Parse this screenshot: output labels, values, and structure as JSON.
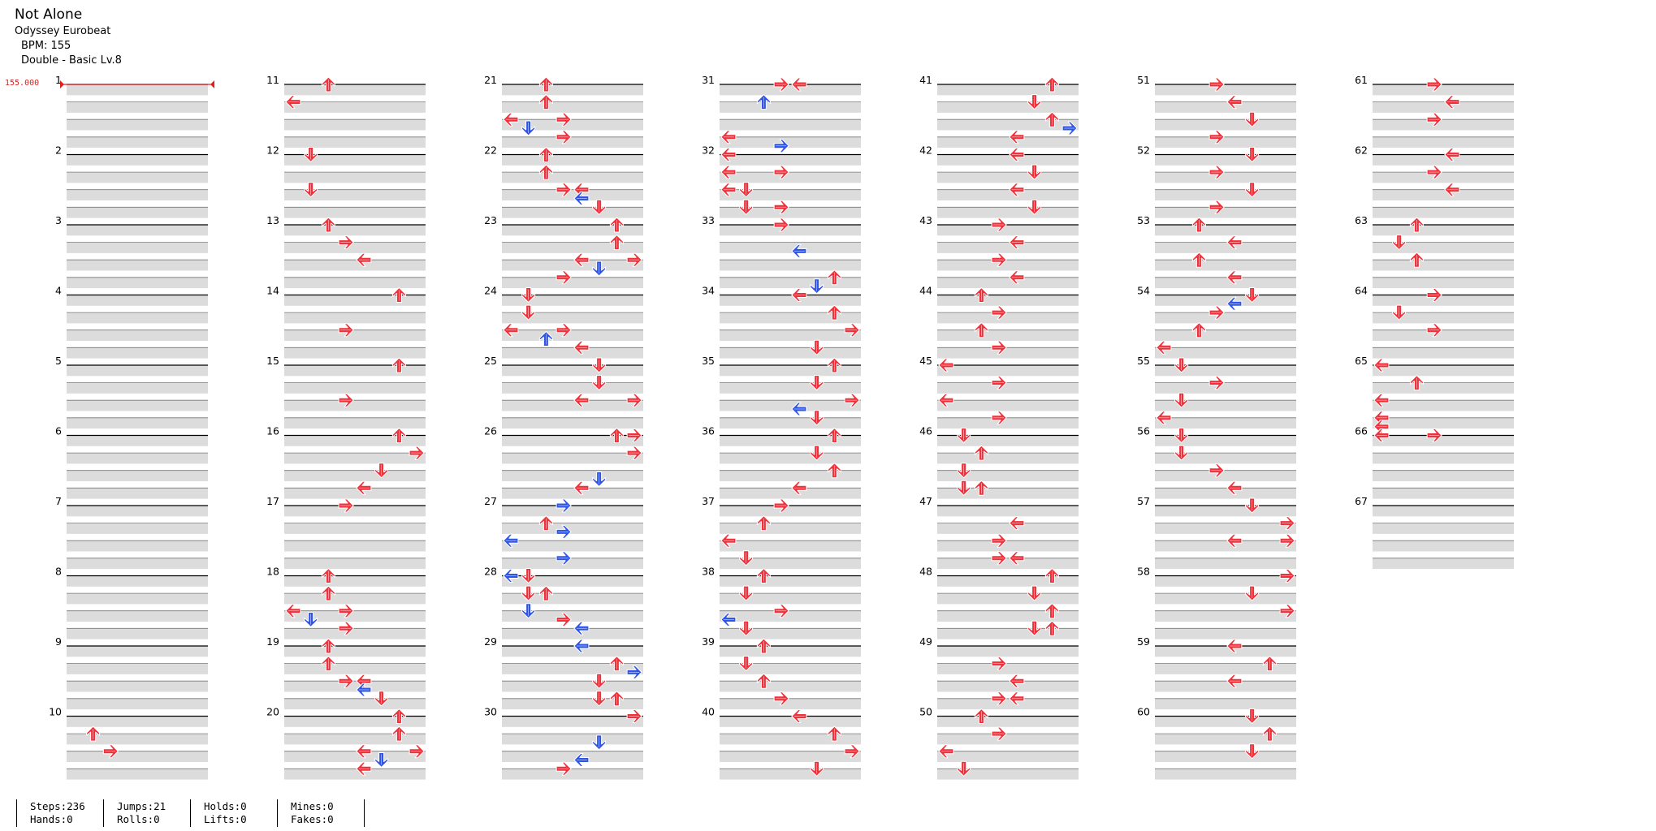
{
  "header": {
    "title": "Not Alone",
    "artist": "Odyssey Eurobeat",
    "bpm": "BPM: 155",
    "difficulty": "Double - Basic Lv.8"
  },
  "bpm_marker": "155.000",
  "colors": {
    "note_red": "#f0303a",
    "note_blue": "#2f55e8",
    "lane_gray": "#dcdcdc",
    "bpm_red": "#e02020"
  },
  "stats": [
    {
      "a": "Steps:236",
      "b": "Hands:0"
    },
    {
      "a": "Jumps:21",
      "b": "Rolls:0"
    },
    {
      "a": "Holds:0",
      "b": "Lifts:0"
    },
    {
      "a": "Mines:0",
      "b": "Fakes:0"
    }
  ],
  "measure_count": 67,
  "notes": {
    "10": [
      [
        2,
        1,
        "u",
        "r"
      ],
      [
        4,
        2,
        "r",
        "r"
      ]
    ],
    "11": [
      [
        0,
        2,
        "u",
        "r"
      ],
      [
        2,
        0,
        "l",
        "r"
      ]
    ],
    "12": [
      [
        0,
        1,
        "d",
        "r"
      ],
      [
        4,
        1,
        "d",
        "r"
      ]
    ],
    "13": [
      [
        0,
        2,
        "u",
        "r"
      ],
      [
        2,
        3,
        "r",
        "r"
      ],
      [
        4,
        4,
        "l",
        "r"
      ]
    ],
    "14": [
      [
        0,
        6,
        "u",
        "r"
      ],
      [
        4,
        3,
        "r",
        "r"
      ]
    ],
    "15": [
      [
        0,
        6,
        "u",
        "r"
      ],
      [
        4,
        3,
        "r",
        "r"
      ]
    ],
    "16": [
      [
        0,
        6,
        "u",
        "r"
      ],
      [
        2,
        7,
        "r",
        "r"
      ],
      [
        4,
        5,
        "d",
        "r"
      ],
      [
        6,
        4,
        "l",
        "r"
      ]
    ],
    "17": [
      [
        0,
        3,
        "r",
        "r"
      ]
    ],
    "18": [
      [
        0,
        2,
        "u",
        "r"
      ],
      [
        2,
        2,
        "u",
        "r"
      ],
      [
        4,
        0,
        "l",
        "r"
      ],
      [
        4,
        3,
        "r",
        "r"
      ],
      [
        5,
        1,
        "d",
        "b"
      ],
      [
        6,
        3,
        "r",
        "r"
      ]
    ],
    "19": [
      [
        0,
        2,
        "u",
        "r"
      ],
      [
        2,
        2,
        "u",
        "r"
      ],
      [
        4,
        3,
        "r",
        "r"
      ],
      [
        4,
        4,
        "l",
        "r"
      ],
      [
        5,
        4,
        "l",
        "b"
      ],
      [
        6,
        5,
        "d",
        "r"
      ]
    ],
    "20": [
      [
        0,
        6,
        "u",
        "r"
      ],
      [
        2,
        6,
        "u",
        "r"
      ],
      [
        4,
        4,
        "l",
        "r"
      ],
      [
        4,
        7,
        "r",
        "r"
      ],
      [
        5,
        5,
        "d",
        "b"
      ],
      [
        6,
        4,
        "l",
        "r"
      ]
    ],
    "21": [
      [
        0,
        2,
        "u",
        "r"
      ],
      [
        2,
        2,
        "u",
        "r"
      ],
      [
        4,
        0,
        "l",
        "r"
      ],
      [
        4,
        3,
        "r",
        "r"
      ],
      [
        5,
        1,
        "d",
        "b"
      ],
      [
        6,
        3,
        "r",
        "r"
      ]
    ],
    "22": [
      [
        0,
        2,
        "u",
        "r"
      ],
      [
        2,
        2,
        "u",
        "r"
      ],
      [
        4,
        3,
        "r",
        "r"
      ],
      [
        4,
        4,
        "l",
        "r"
      ],
      [
        5,
        4,
        "l",
        "b"
      ],
      [
        6,
        5,
        "d",
        "r"
      ]
    ],
    "23": [
      [
        0,
        6,
        "u",
        "r"
      ],
      [
        2,
        6,
        "u",
        "r"
      ],
      [
        4,
        4,
        "l",
        "r"
      ],
      [
        4,
        7,
        "r",
        "r"
      ],
      [
        5,
        5,
        "d",
        "b"
      ],
      [
        6,
        3,
        "r",
        "r"
      ]
    ],
    "24": [
      [
        0,
        1,
        "d",
        "r"
      ],
      [
        2,
        1,
        "d",
        "r"
      ],
      [
        4,
        0,
        "l",
        "r"
      ],
      [
        4,
        3,
        "r",
        "r"
      ],
      [
        5,
        2,
        "u",
        "b"
      ],
      [
        6,
        4,
        "l",
        "r"
      ]
    ],
    "25": [
      [
        0,
        5,
        "d",
        "r"
      ],
      [
        2,
        5,
        "d",
        "r"
      ],
      [
        4,
        4,
        "l",
        "r"
      ],
      [
        4,
        7,
        "r",
        "r"
      ]
    ],
    "26": [
      [
        0,
        6,
        "u",
        "r"
      ],
      [
        0,
        7,
        "r",
        "r"
      ],
      [
        2,
        7,
        "r",
        "r"
      ],
      [
        5,
        5,
        "d",
        "b"
      ],
      [
        6,
        4,
        "l",
        "r"
      ]
    ],
    "27": [
      [
        0,
        3,
        "r",
        "b"
      ],
      [
        2,
        2,
        "u",
        "r"
      ],
      [
        3,
        3,
        "r",
        "b"
      ],
      [
        4,
        0,
        "l",
        "b"
      ],
      [
        6,
        3,
        "r",
        "b"
      ]
    ],
    "28": [
      [
        0,
        0,
        "l",
        "b"
      ],
      [
        0,
        1,
        "d",
        "r"
      ],
      [
        2,
        1,
        "d",
        "r"
      ],
      [
        2,
        2,
        "u",
        "r"
      ],
      [
        4,
        1,
        "d",
        "b"
      ],
      [
        5,
        3,
        "r",
        "r"
      ],
      [
        6,
        4,
        "l",
        "b"
      ]
    ],
    "29": [
      [
        0,
        4,
        "l",
        "b"
      ],
      [
        2,
        6,
        "u",
        "r"
      ],
      [
        3,
        7,
        "r",
        "b"
      ],
      [
        4,
        5,
        "d",
        "r"
      ],
      [
        6,
        5,
        "d",
        "r"
      ],
      [
        6,
        6,
        "u",
        "r"
      ]
    ],
    "30": [
      [
        0,
        7,
        "r",
        "r"
      ],
      [
        3,
        5,
        "d",
        "b"
      ],
      [
        5,
        4,
        "l",
        "b"
      ],
      [
        6,
        3,
        "r",
        "r"
      ]
    ],
    "31": [
      [
        0,
        3,
        "r",
        "r"
      ],
      [
        0,
        4,
        "l",
        "r"
      ],
      [
        2,
        2,
        "u",
        "b"
      ],
      [
        6,
        0,
        "l",
        "r"
      ]
    ],
    "32": [
      [
        -1,
        3,
        "r",
        "b"
      ],
      [
        0,
        0,
        "l",
        "r"
      ],
      [
        2,
        0,
        "l",
        "r"
      ],
      [
        2,
        3,
        "r",
        "r"
      ],
      [
        4,
        0,
        "l",
        "r"
      ],
      [
        4,
        1,
        "d",
        "r"
      ],
      [
        6,
        1,
        "d",
        "r"
      ],
      [
        6,
        3,
        "r",
        "r"
      ]
    ],
    "33": [
      [
        0,
        3,
        "r",
        "r"
      ],
      [
        3,
        4,
        "l",
        "b"
      ],
      [
        6,
        6,
        "u",
        "r"
      ]
    ],
    "34": [
      [
        -1,
        5,
        "d",
        "b"
      ],
      [
        0,
        4,
        "l",
        "r"
      ],
      [
        2,
        6,
        "u",
        "r"
      ],
      [
        4,
        7,
        "r",
        "r"
      ],
      [
        6,
        5,
        "d",
        "r"
      ]
    ],
    "35": [
      [
        0,
        6,
        "u",
        "r"
      ],
      [
        2,
        5,
        "d",
        "r"
      ],
      [
        4,
        7,
        "r",
        "r"
      ],
      [
        5,
        4,
        "l",
        "b"
      ],
      [
        6,
        5,
        "d",
        "r"
      ]
    ],
    "36": [
      [
        0,
        6,
        "u",
        "r"
      ],
      [
        2,
        5,
        "d",
        "r"
      ],
      [
        4,
        6,
        "u",
        "r"
      ],
      [
        6,
        4,
        "l",
        "r"
      ]
    ],
    "37": [
      [
        0,
        3,
        "r",
        "r"
      ],
      [
        2,
        2,
        "u",
        "r"
      ],
      [
        4,
        0,
        "l",
        "r"
      ],
      [
        6,
        1,
        "d",
        "r"
      ]
    ],
    "38": [
      [
        0,
        2,
        "u",
        "r"
      ],
      [
        2,
        1,
        "d",
        "r"
      ],
      [
        4,
        3,
        "r",
        "r"
      ],
      [
        5,
        0,
        "l",
        "b"
      ],
      [
        6,
        1,
        "d",
        "r"
      ]
    ],
    "39": [
      [
        0,
        2,
        "u",
        "r"
      ],
      [
        2,
        1,
        "d",
        "r"
      ],
      [
        4,
        2,
        "u",
        "r"
      ],
      [
        6,
        3,
        "r",
        "r"
      ]
    ],
    "40": [
      [
        0,
        4,
        "l",
        "r"
      ],
      [
        2,
        6,
        "u",
        "r"
      ],
      [
        4,
        7,
        "r",
        "r"
      ],
      [
        6,
        5,
        "d",
        "r"
      ]
    ],
    "41": [
      [
        0,
        6,
        "u",
        "r"
      ],
      [
        2,
        5,
        "d",
        "r"
      ],
      [
        4,
        6,
        "u",
        "r"
      ],
      [
        5,
        7,
        "r",
        "b"
      ],
      [
        6,
        4,
        "l",
        "r"
      ]
    ],
    "42": [
      [
        0,
        4,
        "l",
        "r"
      ],
      [
        2,
        5,
        "d",
        "r"
      ],
      [
        4,
        4,
        "l",
        "r"
      ],
      [
        6,
        5,
        "d",
        "r"
      ]
    ],
    "43": [
      [
        0,
        3,
        "r",
        "r"
      ],
      [
        2,
        4,
        "l",
        "r"
      ],
      [
        4,
        3,
        "r",
        "r"
      ],
      [
        6,
        4,
        "l",
        "r"
      ]
    ],
    "44": [
      [
        0,
        2,
        "u",
        "r"
      ],
      [
        2,
        3,
        "r",
        "r"
      ],
      [
        4,
        2,
        "u",
        "r"
      ],
      [
        6,
        3,
        "r",
        "r"
      ]
    ],
    "45": [
      [
        0,
        0,
        "l",
        "r"
      ],
      [
        2,
        3,
        "r",
        "r"
      ],
      [
        4,
        0,
        "l",
        "r"
      ],
      [
        6,
        3,
        "r",
        "r"
      ]
    ],
    "46": [
      [
        0,
        1,
        "d",
        "r"
      ],
      [
        2,
        2,
        "u",
        "r"
      ],
      [
        4,
        1,
        "d",
        "r"
      ],
      [
        6,
        1,
        "d",
        "r"
      ],
      [
        6,
        2,
        "u",
        "r"
      ]
    ],
    "47": [
      [
        2,
        4,
        "l",
        "r"
      ],
      [
        4,
        3,
        "r",
        "r"
      ],
      [
        6,
        3,
        "r",
        "r"
      ],
      [
        6,
        4,
        "l",
        "r"
      ]
    ],
    "48": [
      [
        0,
        6,
        "u",
        "r"
      ],
      [
        2,
        5,
        "d",
        "r"
      ],
      [
        4,
        6,
        "u",
        "r"
      ],
      [
        6,
        5,
        "d",
        "r"
      ],
      [
        6,
        6,
        "u",
        "r"
      ]
    ],
    "49": [
      [
        2,
        3,
        "r",
        "r"
      ],
      [
        4,
        4,
        "l",
        "r"
      ],
      [
        6,
        3,
        "r",
        "r"
      ],
      [
        6,
        4,
        "l",
        "r"
      ]
    ],
    "50": [
      [
        0,
        2,
        "u",
        "r"
      ],
      [
        2,
        3,
        "r",
        "r"
      ],
      [
        4,
        0,
        "l",
        "r"
      ],
      [
        6,
        1,
        "d",
        "r"
      ]
    ],
    "51": [
      [
        0,
        3,
        "r",
        "r"
      ],
      [
        2,
        4,
        "l",
        "r"
      ],
      [
        4,
        5,
        "d",
        "r"
      ],
      [
        6,
        3,
        "r",
        "r"
      ]
    ],
    "52": [
      [
        0,
        5,
        "d",
        "r"
      ],
      [
        2,
        3,
        "r",
        "r"
      ],
      [
        4,
        5,
        "d",
        "r"
      ],
      [
        6,
        3,
        "r",
        "r"
      ]
    ],
    "53": [
      [
        0,
        2,
        "u",
        "r"
      ],
      [
        2,
        4,
        "l",
        "r"
      ],
      [
        4,
        2,
        "u",
        "r"
      ],
      [
        6,
        4,
        "l",
        "r"
      ]
    ],
    "54": [
      [
        0,
        5,
        "d",
        "r"
      ],
      [
        1,
        4,
        "l",
        "b"
      ],
      [
        2,
        3,
        "r",
        "r"
      ],
      [
        4,
        2,
        "u",
        "r"
      ],
      [
        6,
        0,
        "l",
        "r"
      ]
    ],
    "55": [
      [
        0,
        1,
        "d",
        "r"
      ],
      [
        2,
        3,
        "r",
        "r"
      ],
      [
        4,
        1,
        "d",
        "r"
      ],
      [
        6,
        0,
        "l",
        "r"
      ]
    ],
    "56": [
      [
        0,
        1,
        "d",
        "r"
      ],
      [
        2,
        1,
        "d",
        "r"
      ],
      [
        4,
        3,
        "r",
        "r"
      ],
      [
        6,
        4,
        "l",
        "r"
      ]
    ],
    "57": [
      [
        0,
        5,
        "d",
        "r"
      ],
      [
        2,
        7,
        "r",
        "r"
      ],
      [
        4,
        4,
        "l",
        "r"
      ],
      [
        4,
        7,
        "r",
        "r"
      ]
    ],
    "58": [
      [
        0,
        7,
        "r",
        "r"
      ],
      [
        2,
        5,
        "d",
        "r"
      ],
      [
        4,
        7,
        "r",
        "r"
      ]
    ],
    "59": [
      [
        0,
        4,
        "l",
        "r"
      ],
      [
        2,
        6,
        "u",
        "r"
      ],
      [
        4,
        4,
        "l",
        "r"
      ]
    ],
    "60": [
      [
        0,
        5,
        "d",
        "r"
      ],
      [
        2,
        6,
        "u",
        "r"
      ],
      [
        4,
        5,
        "d",
        "r"
      ]
    ],
    "61": [
      [
        0,
        3,
        "r",
        "r"
      ],
      [
        2,
        4,
        "l",
        "r"
      ],
      [
        4,
        3,
        "r",
        "r"
      ]
    ],
    "62": [
      [
        0,
        4,
        "l",
        "r"
      ],
      [
        2,
        3,
        "r",
        "r"
      ],
      [
        4,
        4,
        "l",
        "r"
      ]
    ],
    "63": [
      [
        0,
        2,
        "u",
        "r"
      ],
      [
        2,
        1,
        "d",
        "r"
      ],
      [
        4,
        2,
        "u",
        "r"
      ]
    ],
    "64": [
      [
        0,
        3,
        "r",
        "r"
      ],
      [
        2,
        1,
        "d",
        "r"
      ],
      [
        4,
        3,
        "r",
        "r"
      ]
    ],
    "65": [
      [
        0,
        0,
        "l",
        "r"
      ],
      [
        2,
        2,
        "u",
        "r"
      ],
      [
        4,
        0,
        "l",
        "r"
      ],
      [
        6,
        0,
        "l",
        "r"
      ]
    ],
    "66": [
      [
        -1,
        0,
        "l",
        "r"
      ],
      [
        0,
        0,
        "l",
        "r"
      ],
      [
        0,
        3,
        "r",
        "r"
      ]
    ]
  }
}
